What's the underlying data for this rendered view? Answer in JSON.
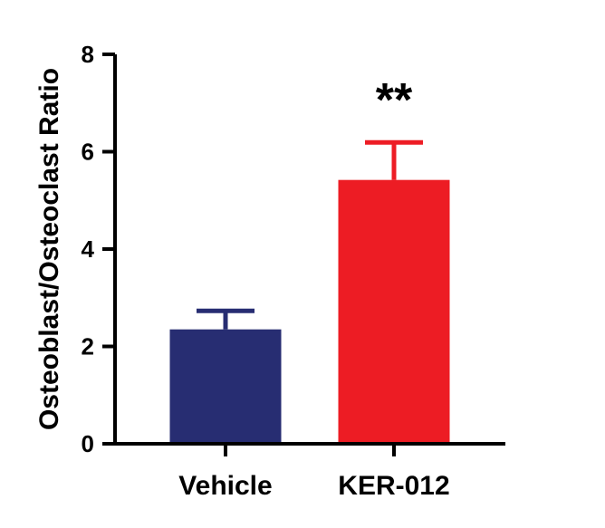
{
  "chart_data": {
    "type": "bar",
    "title": "",
    "xlabel": "",
    "ylabel": "Osteoblast/Osteoclast Ratio",
    "ylim": [
      0,
      8
    ],
    "yticks": [
      0,
      2,
      4,
      6,
      8
    ],
    "grid": false,
    "categories": [
      "Vehicle",
      "KER-012"
    ],
    "values": [
      2.35,
      5.42
    ],
    "error_upper": [
      0.38,
      0.77
    ],
    "colors": [
      "#272d72",
      "#ed1c24"
    ],
    "annotations": [
      {
        "category": "KER-012",
        "text": "**"
      }
    ]
  }
}
